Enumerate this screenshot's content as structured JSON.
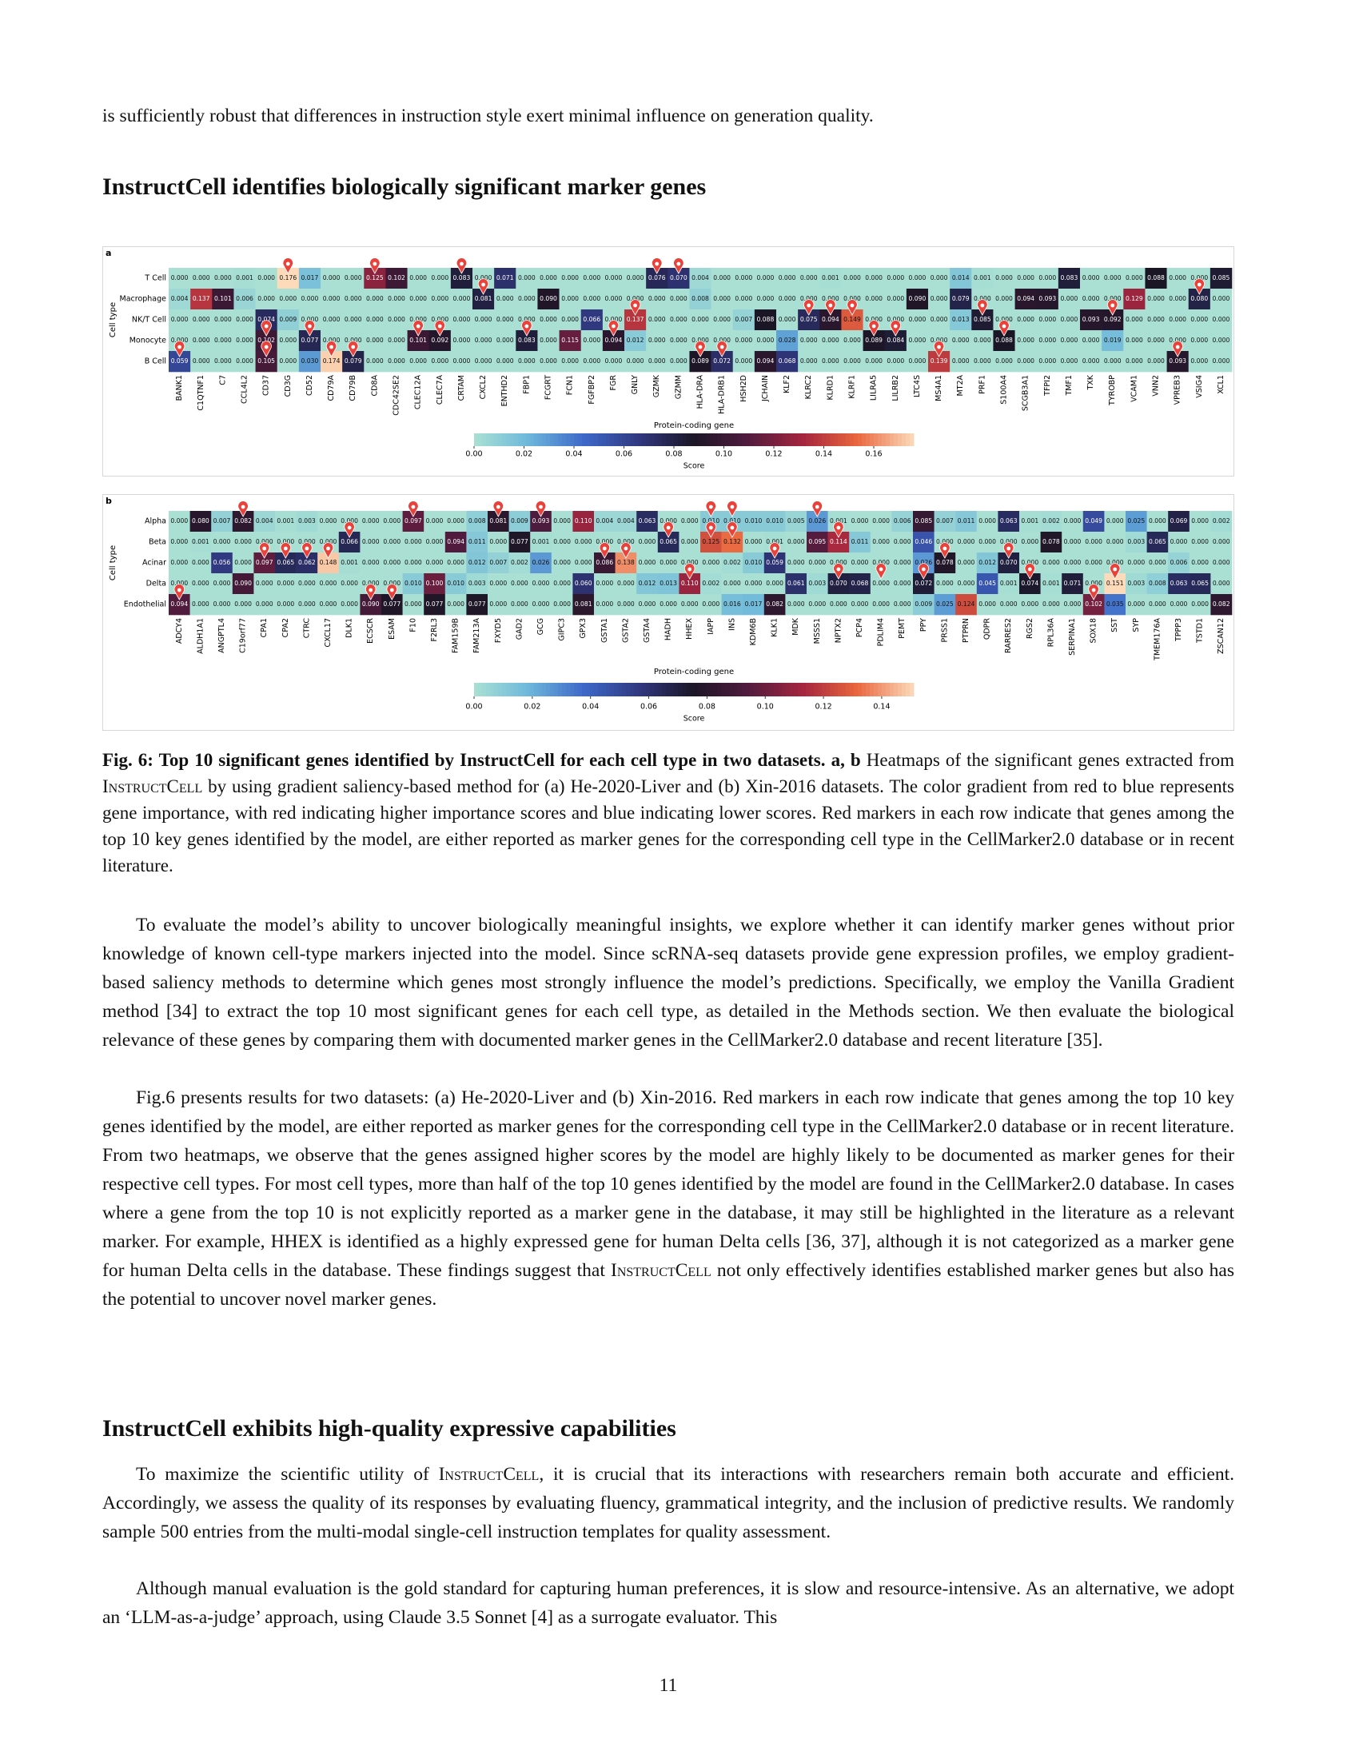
{
  "body": {
    "intro": "is sufficiently robust that differences in instruction style exert minimal influence on generation quality.",
    "heading1": "InstructCell identifies biologically significant marker genes",
    "caption": [
      {
        "text": "Fig. 6: Top 10 significant genes identified by InstructCell for each cell type in two datasets. a, b",
        "style": "bold"
      },
      " Heatmaps of the significant genes extracted from ",
      {
        "text": "InstructCell",
        "style": "smallcaps"
      },
      " by using gradient saliency-based method for (a) He-2020-Liver and (b) Xin-2016 datasets. The color gradient from red to blue represents gene importance, with red indicating higher importance scores and blue indicating lower scores. Red markers in each row indicate that genes among the top 10 key genes identified by the model, are either reported as marker genes for the corresponding cell type in the CellMarker2.0 database or in recent literature."
    ],
    "paragraphs1": [
      [
        "To evaluate the model’s ability to uncover biologically meaningful insights, we explore whether it can identify marker genes without prior knowledge of known cell-type markers injected into the model. Since scRNA-seq datasets provide gene expression profiles, we employ gradient-based saliency methods to determine which genes most strongly influence the model’s predictions. Specifically, we employ the Vanilla Gradient method [34] to extract the top 10 most significant genes for each cell type, as detailed in the Methods section. We then evaluate the biological relevance of these genes by comparing them with documented marker genes in the CellMarker2.0 database and recent literature [35]."
      ],
      [
        "Fig.6 presents results for two datasets: (a) He-2020-Liver and (b) Xin-2016. Red markers in each row indicate that genes among the top 10 key genes identified by the model, are either reported as marker genes for the corresponding cell type in the CellMarker2.0 database or in recent literature. From two heatmaps, we observe that the genes assigned higher scores by the model are highly likely to be documented as marker genes for their respective cell types. For most cell types, more than half of the top 10 genes identified by the model are found in the CellMarker2.0 database. In cases where a gene from the top 10 is not explicitly reported as a marker gene in the database, it may still be highlighted in the literature as a relevant marker. For example, HHEX is identified as a highly expressed gene for human Delta cells [36, 37], although it is not categorized as a marker gene for human Delta cells in the database. These findings suggest that ",
        {
          "text": "InstructCell",
          "style": "smallcaps"
        },
        " not only effectively identifies established marker genes but also has the potential to uncover novel marker genes."
      ]
    ],
    "heading2": "InstructCell exhibits high-quality expressive capabilities",
    "paragraphs2": [
      [
        "To maximize the scientific utility of ",
        {
          "text": "InstructCell",
          "style": "smallcaps"
        },
        ", it is crucial that its interactions with researchers remain both accurate and efficient. Accordingly, we assess the quality of its responses by evaluating fluency, grammatical integrity, and the inclusion of predictive results. We randomly sample 500 entries from the multi-modal single-cell instruction templates for quality assessment."
      ],
      [
        "Although manual evaluation is the gold standard for capturing human preferences, it is slow and resource-intensive. As an alternative, we adopt an ‘LLM-as-a-judge’ approach, using Claude 3.5 Sonnet [4] as a surrogate evaluator. This"
      ]
    ],
    "page_number": "11"
  },
  "figures": [
    {
      "panel": "a",
      "y_label": "Cell type",
      "x_label": "Protein-coding gene",
      "colorbar_label": "Score",
      "colorbar_range": [
        0,
        0.176
      ],
      "colorbar_ticks": [
        {
          "value": 0,
          "label": "0.00"
        },
        {
          "value": 0.02,
          "label": "0.02"
        },
        {
          "value": 0.04,
          "label": "0.04"
        },
        {
          "value": 0.06,
          "label": "0.06"
        },
        {
          "value": 0.08,
          "label": "0.08"
        },
        {
          "value": 0.1,
          "label": "0.10"
        },
        {
          "value": 0.12,
          "label": "0.12"
        },
        {
          "value": 0.14,
          "label": "0.14"
        },
        {
          "value": 0.16,
          "label": "0.16"
        }
      ],
      "rows": [
        "T Cell",
        "Macrophage",
        "NK/T Cell",
        "Monocyte",
        "B Cell"
      ],
      "genes": [
        "BANK1",
        "C1QTNF1",
        "C7",
        "CCL4L2",
        "CD37",
        "CD3G",
        "CD52",
        "CD79A",
        "CD79B",
        "CD8A",
        "CDC42SE2",
        "CLEC12A",
        "CLEC7A",
        "CRTAM",
        "CXCL2",
        "ENTHD2",
        "FBP1",
        "FCGRT",
        "FCN1",
        "FGFBP2",
        "FGR",
        "GNLY",
        "GZMK",
        "GZMM",
        "HLA-DRA",
        "HLA-DRB1",
        "HSH2D",
        "JCHAIN",
        "KLF2",
        "KLRC2",
        "KLRD1",
        "KLRF1",
        "LILRA5",
        "LILRB2",
        "LTC4S",
        "MS4A1",
        "MT2A",
        "PRF1",
        "S100A4",
        "SCGB3A1",
        "TFPI2",
        "TMF1",
        "TXK",
        "TYROBP",
        "VCAM1",
        "VNN2",
        "VPREB3",
        "VSIG4",
        "XCL1"
      ],
      "cells": [
        [
          "0.000",
          "0.000",
          "0.000",
          "0.001",
          "0.000",
          "0.176",
          "0.017",
          "0.000",
          "0.000",
          "0.125",
          "0.102",
          "0.000",
          "0.000",
          "0.083",
          "0.000",
          "0.071",
          "0.000",
          "0.000",
          "0.000",
          "0.000",
          "0.000",
          "0.000",
          "0.076",
          "0.070",
          "0.004",
          "0.000",
          "0.000",
          "0.000",
          "0.000",
          "0.000",
          "0.001",
          "0.000",
          "0.000",
          "0.000",
          "0.000",
          "0.000",
          "0.014",
          "0.001",
          "0.000",
          "0.000",
          "0.000",
          "0.083",
          "0.000",
          "0.000",
          "0.000",
          "0.088",
          "0.000",
          "0.000",
          "0.085"
        ],
        [
          "0.004",
          "0.137",
          "0.101",
          "0.006",
          "0.000",
          "0.000",
          "0.000",
          "0.000",
          "0.000",
          "0.000",
          "0.000",
          "0.000",
          "0.000",
          "0.000",
          "0.081",
          "0.000",
          "0.000",
          "0.090",
          "0.000",
          "0.000",
          "0.000",
          "0.000",
          "0.000",
          "0.000",
          "0.008",
          "0.000",
          "0.000",
          "0.000",
          "0.000",
          "0.000",
          "0.000",
          "0.000",
          "0.000",
          "0.000",
          "0.090",
          "0.000",
          "0.079",
          "0.000",
          "0.000",
          "0.094",
          "0.093",
          "0.000",
          "0.000",
          "0.000",
          "0.129",
          "0.000",
          "0.000",
          "0.080",
          "0.000"
        ],
        [
          "0.000",
          "0.000",
          "0.000",
          "0.000",
          "0.074",
          "0.009",
          "0.000",
          "0.000",
          "0.000",
          "0.000",
          "0.000",
          "0.000",
          "0.000",
          "0.000",
          "0.000",
          "0.000",
          "0.000",
          "0.000",
          "0.000",
          "0.066",
          "0.000",
          "0.137",
          "0.000",
          "0.000",
          "0.000",
          "0.000",
          "0.007",
          "0.088",
          "0.000",
          "0.075",
          "0.094",
          "0.149",
          "0.000",
          "0.000",
          "0.000",
          "0.000",
          "0.013",
          "0.085",
          "0.000",
          "0.000",
          "0.000",
          "0.000",
          "0.093",
          "0.092",
          "0.000",
          "0.000",
          "0.000",
          "0.000",
          "0.000"
        ],
        [
          "0.000",
          "0.000",
          "0.000",
          "0.000",
          "0.102",
          "0.000",
          "0.077",
          "0.000",
          "0.000",
          "0.000",
          "0.000",
          "0.101",
          "0.092",
          "0.000",
          "0.000",
          "0.000",
          "0.083",
          "0.000",
          "0.115",
          "0.000",
          "0.094",
          "0.012",
          "0.000",
          "0.000",
          "0.000",
          "0.000",
          "0.000",
          "0.000",
          "0.028",
          "0.000",
          "0.000",
          "0.000",
          "0.089",
          "0.084",
          "0.000",
          "0.000",
          "0.000",
          "0.000",
          "0.088",
          "0.000",
          "0.000",
          "0.000",
          "0.000",
          "0.019",
          "0.000",
          "0.000",
          "0.000",
          "0.000",
          "0.000"
        ],
        [
          "0.059",
          "0.000",
          "0.000",
          "0.000",
          "0.105",
          "0.000",
          "0.030",
          "0.174",
          "0.079",
          "0.000",
          "0.000",
          "0.000",
          "0.000",
          "0.000",
          "0.000",
          "0.000",
          "0.000",
          "0.000",
          "0.000",
          "0.000",
          "0.000",
          "0.000",
          "0.000",
          "0.000",
          "0.089",
          "0.072",
          "0.000",
          "0.094",
          "0.068",
          "0.000",
          "0.000",
          "0.000",
          "0.000",
          "0.000",
          "0.000",
          "0.139",
          "0.000",
          "0.000",
          "0.000",
          "0.000",
          "0.000",
          "0.000",
          "0.000",
          "0.000",
          "0.000",
          "0.000",
          "0.093",
          "0.000",
          "0.000"
        ]
      ],
      "markers": [
        [
          5,
          9,
          13,
          22,
          23
        ],
        [
          14,
          47
        ],
        [
          21,
          29,
          30,
          31,
          37,
          43
        ],
        [
          4,
          6,
          11,
          12,
          16,
          20,
          32,
          33,
          38
        ],
        [
          0,
          4,
          7,
          8,
          24,
          25,
          35,
          46
        ]
      ]
    },
    {
      "panel": "b",
      "y_label": "Cell type",
      "x_label": "Protein-coding gene",
      "colorbar_label": "Score",
      "colorbar_range": [
        0,
        0.151
      ],
      "colorbar_ticks": [
        {
          "value": 0,
          "label": "0.00"
        },
        {
          "value": 0.02,
          "label": "0.02"
        },
        {
          "value": 0.04,
          "label": "0.04"
        },
        {
          "value": 0.06,
          "label": "0.06"
        },
        {
          "value": 0.08,
          "label": "0.08"
        },
        {
          "value": 0.1,
          "label": "0.10"
        },
        {
          "value": 0.12,
          "label": "0.12"
        },
        {
          "value": 0.14,
          "label": "0.14"
        }
      ],
      "rows": [
        "Alpha",
        "Beta",
        "Acinar",
        "Delta",
        "Endothelial"
      ],
      "genes": [
        "ADCY4",
        "ALDH1A1",
        "ANGPTL4",
        "C19orf77",
        "CPA1",
        "CPA2",
        "CTRC",
        "CXCL17",
        "DLK1",
        "ECSCR",
        "ESAM",
        "F10",
        "F2RL3",
        "FAM159B",
        "FAM213A",
        "FXYD5",
        "GAD2",
        "GCG",
        "GIPC3",
        "GPX3",
        "GSTA1",
        "GSTA2",
        "GSTA4",
        "HADH",
        "HHEX",
        "IAPP",
        "INS",
        "KDM6B",
        "KLK1",
        "MDK",
        "MSSS1",
        "NPTX2",
        "PCP4",
        "PDLIM4",
        "PEMT",
        "PPY",
        "PRSS1",
        "PTPRN",
        "QDPR",
        "RARRES2",
        "RGS2",
        "RPL36A",
        "SERPINA1",
        "SOX18",
        "SST",
        "SYP",
        "TMEM176A",
        "TPPP3",
        "TSTD1",
        "ZSCAN12"
      ],
      "cells": [
        [
          "0.000",
          "0.080",
          "0.007",
          "0.082",
          "0.004",
          "0.001",
          "0.003",
          "0.000",
          "0.000",
          "0.000",
          "0.000",
          "0.097",
          "0.000",
          "0.000",
          "0.008",
          "0.081",
          "0.009",
          "0.093",
          "0.000",
          "0.110",
          "0.004",
          "0.004",
          "0.063",
          "0.000",
          "0.000",
          "0.010",
          "0.010",
          "0.010",
          "0.010",
          "0.005",
          "0.026",
          "0.001",
          "0.000",
          "0.000",
          "0.006",
          "0.085",
          "0.007",
          "0.011",
          "0.000",
          "0.063",
          "0.001",
          "0.002",
          "0.000",
          "0.049",
          "0.000",
          "0.025",
          "0.000",
          "0.069",
          "0.000",
          "0.002"
        ],
        [
          "0.000",
          "0.001",
          "0.000",
          "0.000",
          "0.000",
          "0.000",
          "0.000",
          "0.000",
          "0.066",
          "0.000",
          "0.000",
          "0.000",
          "0.000",
          "0.094",
          "0.011",
          "0.000",
          "0.077",
          "0.001",
          "0.000",
          "0.000",
          "0.000",
          "0.000",
          "0.000",
          "0.065",
          "0.000",
          "0.125",
          "0.132",
          "0.000",
          "0.001",
          "0.000",
          "0.095",
          "0.114",
          "0.011",
          "0.000",
          "0.000",
          "0.046",
          "0.000",
          "0.000",
          "0.000",
          "0.000",
          "0.000",
          "0.078",
          "0.000",
          "0.000",
          "0.000",
          "0.003",
          "0.065",
          "0.000",
          "0.000",
          "0.000"
        ],
        [
          "0.000",
          "0.000",
          "0.056",
          "0.000",
          "0.097",
          "0.065",
          "0.062",
          "0.148",
          "0.001",
          "0.000",
          "0.000",
          "0.000",
          "0.000",
          "0.000",
          "0.012",
          "0.007",
          "0.002",
          "0.026",
          "0.000",
          "0.000",
          "0.086",
          "0.138",
          "0.000",
          "0.000",
          "0.000",
          "0.000",
          "0.002",
          "0.010",
          "0.059",
          "0.000",
          "0.000",
          "0.000",
          "0.000",
          "0.000",
          "0.000",
          "0.026",
          "0.078",
          "0.000",
          "0.012",
          "0.070",
          "0.000",
          "0.000",
          "0.000",
          "0.000",
          "0.000",
          "0.000",
          "0.000",
          "0.006",
          "0.000",
          "0.000"
        ],
        [
          "0.000",
          "0.000",
          "0.000",
          "0.090",
          "0.000",
          "0.000",
          "0.000",
          "0.000",
          "0.000",
          "0.000",
          "0.000",
          "0.010",
          "0.100",
          "0.010",
          "0.003",
          "0.000",
          "0.000",
          "0.000",
          "0.000",
          "0.060",
          "0.000",
          "0.000",
          "0.012",
          "0.013",
          "0.110",
          "0.002",
          "0.000",
          "0.000",
          "0.000",
          "0.061",
          "0.003",
          "0.070",
          "0.068",
          "0.000",
          "0.000",
          "0.072",
          "0.000",
          "0.000",
          "0.045",
          "0.001",
          "0.074",
          "0.001",
          "0.071",
          "0.000",
          "0.151",
          "0.003",
          "0.008",
          "0.063",
          "0.065",
          "0.000"
        ],
        [
          "0.094",
          "0.000",
          "0.000",
          "0.000",
          "0.000",
          "0.000",
          "0.000",
          "0.000",
          "0.000",
          "0.090",
          "0.077",
          "0.000",
          "0.077",
          "0.000",
          "0.077",
          "0.000",
          "0.000",
          "0.000",
          "0.000",
          "0.081",
          "0.000",
          "0.000",
          "0.000",
          "0.000",
          "0.000",
          "0.000",
          "0.016",
          "0.017",
          "0.082",
          "0.000",
          "0.000",
          "0.000",
          "0.000",
          "0.000",
          "0.000",
          "0.009",
          "0.025",
          "0.124",
          "0.000",
          "0.000",
          "0.000",
          "0.000",
          "0.000",
          "0.102",
          "0.035",
          "0.000",
          "0.000",
          "0.000",
          "0.000",
          "0.082"
        ]
      ],
      "markers": [
        [
          3,
          11,
          15,
          17,
          25,
          26,
          30
        ],
        [
          8,
          23,
          25,
          26,
          31
        ],
        [
          4,
          5,
          6,
          7,
          20,
          21,
          28,
          36,
          39
        ],
        [
          24,
          31,
          33,
          35,
          40,
          44
        ],
        [
          0,
          9,
          10,
          43
        ]
      ]
    }
  ]
}
